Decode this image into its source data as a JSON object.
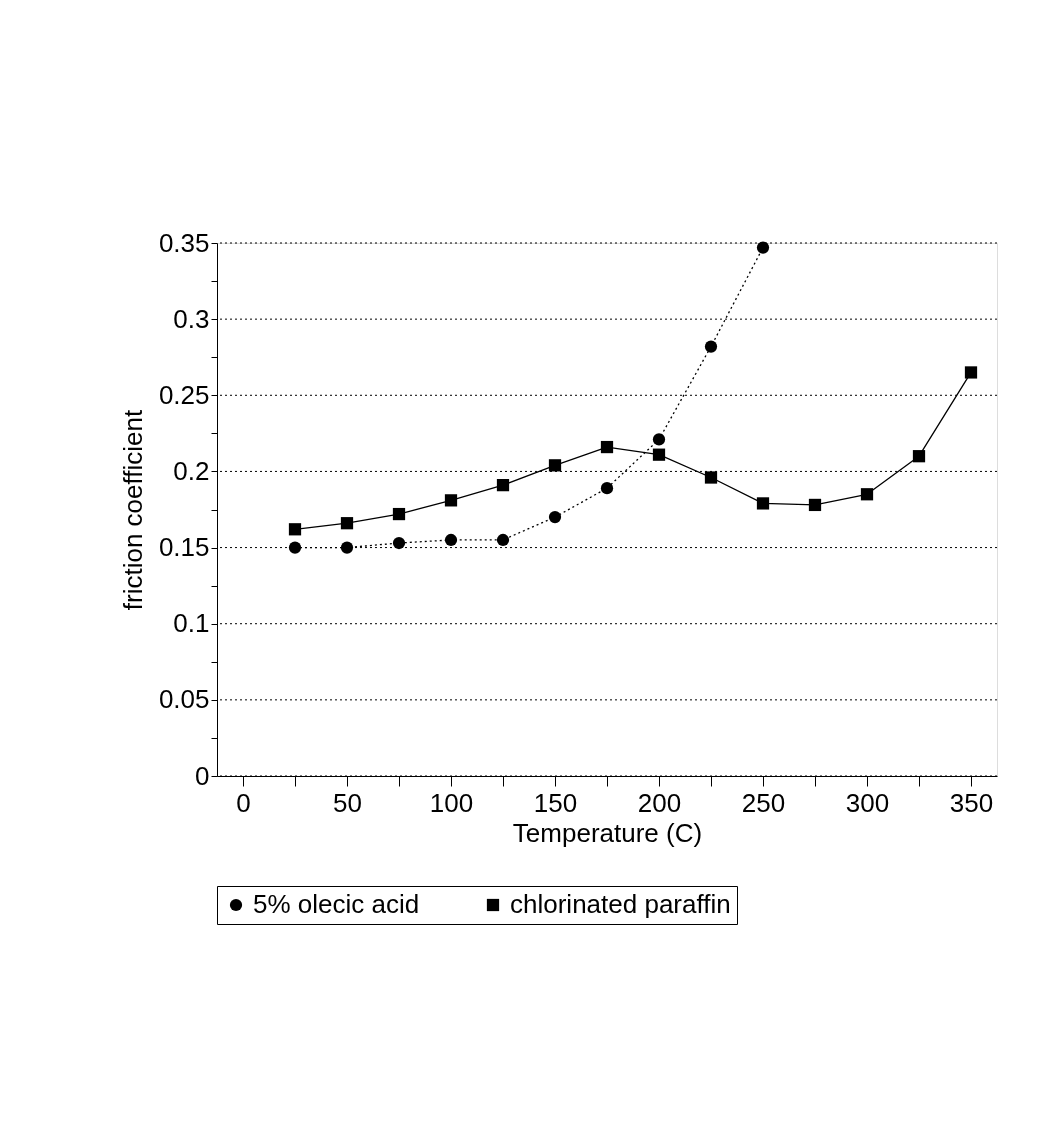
{
  "chart_data": {
    "type": "line",
    "xlabel": "Temperature (C)",
    "ylabel": "friction coefficient",
    "x": [
      25,
      50,
      75,
      100,
      125,
      150,
      175,
      200,
      225,
      250,
      275,
      300,
      325,
      350
    ],
    "series": [
      {
        "name": "5% olecic acid",
        "color": "#000000",
        "marker": "circle",
        "line_style": "dotted",
        "values": [
          0.15,
          0.15,
          0.153,
          0.155,
          0.155,
          0.17,
          0.189,
          0.221,
          0.282,
          0.347,
          null,
          null,
          null,
          null
        ]
      },
      {
        "name": "chlorinated paraffin",
        "color": "#000000",
        "marker": "square",
        "line_style": "solid",
        "values": [
          0.162,
          0.166,
          0.172,
          0.181,
          0.191,
          0.204,
          0.216,
          0.211,
          0.196,
          0.179,
          0.178,
          0.185,
          0.21,
          0.265
        ]
      }
    ],
    "xlim": [
      -12.5,
      362.5
    ],
    "xticks": [
      0,
      {
        "value": 25,
        "label": null
      },
      50,
      {
        "value": 75,
        "label": null
      },
      100,
      {
        "value": 125,
        "label": null
      },
      150,
      {
        "value": 175,
        "label": null
      },
      200,
      {
        "value": 225,
        "label": null
      },
      250,
      {
        "value": 275,
        "label": null
      },
      300,
      {
        "value": 325,
        "label": null
      },
      350
    ],
    "ylim": [
      0,
      0.35
    ],
    "yticks": [
      0,
      {
        "value": 0.025,
        "label": null
      },
      0.05,
      {
        "value": 0.075,
        "label": null
      },
      0.1,
      {
        "value": 0.125,
        "label": null
      },
      0.15,
      {
        "value": 0.175,
        "label": null
      },
      0.2,
      {
        "value": 0.225,
        "label": null
      },
      0.25,
      {
        "value": 0.275,
        "label": null
      },
      0.3,
      {
        "value": 0.325,
        "label": null
      },
      0.35
    ],
    "grid": "y",
    "legend": "bottom"
  }
}
